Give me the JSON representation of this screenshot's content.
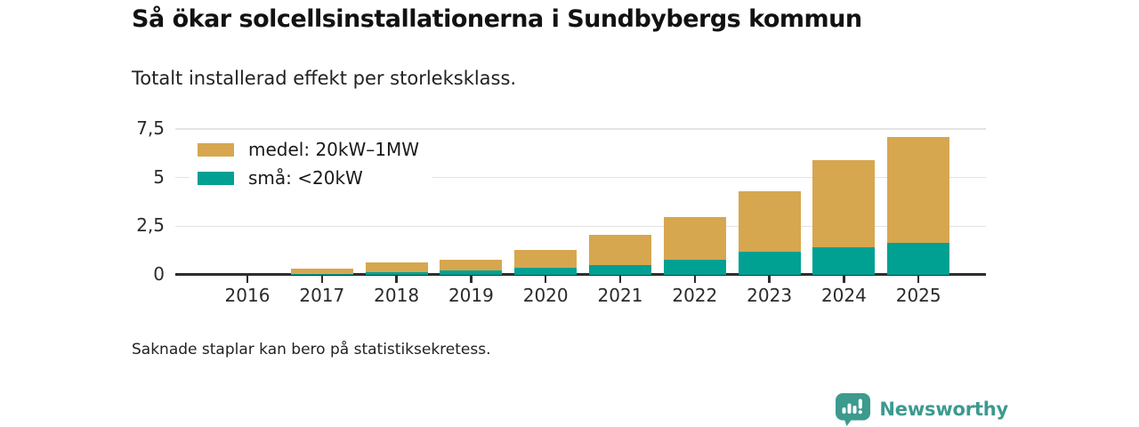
{
  "page": {
    "title": "Så ökar solcellsinstallationerna i Sundbybergs kommun",
    "subtitle": "Totalt installerad effekt per storleksklass.",
    "footnote": "Saknade staplar kan bero på statistiksekretess."
  },
  "branding": {
    "name": "Newsworthy",
    "color": "#3d9a8e",
    "icon": "newsworthy-chart-bubble-icon"
  },
  "chart_data": {
    "type": "bar",
    "stacked": true,
    "title": "Så ökar solcellsinstallationerna i Sundbybergs kommun",
    "subtitle": "Totalt installerad effekt per storleksklass.",
    "categories": [
      "2016",
      "2017",
      "2018",
      "2019",
      "2020",
      "2021",
      "2022",
      "2023",
      "2024",
      "2025"
    ],
    "series": [
      {
        "name": "medel: 20kW–1MW",
        "color": "#d6a74f",
        "values": [
          0,
          0.28,
          0.48,
          0.53,
          0.92,
          1.57,
          2.2,
          3.1,
          4.5,
          5.45
        ]
      },
      {
        "name": "små: <20kW",
        "color": "#00a093",
        "values": [
          0,
          0.03,
          0.15,
          0.25,
          0.37,
          0.5,
          0.78,
          1.18,
          1.42,
          1.63
        ]
      }
    ],
    "stack_totals": [
      0,
      0.31,
      0.63,
      0.78,
      1.29,
      2.07,
      2.98,
      4.28,
      5.92,
      7.08
    ],
    "ylim": [
      0,
      7.5
    ],
    "yticks": [
      {
        "value": 0,
        "label": "0"
      },
      {
        "value": 2.5,
        "label": "2,5"
      },
      {
        "value": 5,
        "label": "5"
      },
      {
        "value": 7.5,
        "label": "7,5"
      }
    ],
    "grid": true,
    "legend_position": "top-left-inside",
    "xlabel": "",
    "ylabel": ""
  }
}
